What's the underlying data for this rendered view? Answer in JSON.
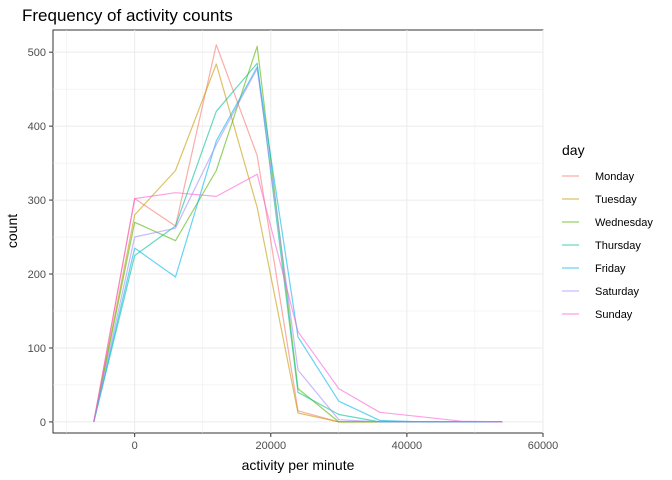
{
  "chart_data": {
    "type": "line",
    "title": "Frequency of activity counts",
    "xlabel": "activity per minute",
    "ylabel": "count",
    "xlim": [
      -12000,
      60000
    ],
    "ylim": [
      -15,
      530
    ],
    "xticks": [
      0,
      20000,
      40000,
      60000
    ],
    "yticks": [
      0,
      100,
      200,
      300,
      400,
      500
    ],
    "grid": true,
    "legend_title": "day",
    "legend_position": "right",
    "line_opacity": 0.6,
    "x": [
      -6000,
      0,
      6000,
      12000,
      18000,
      24000,
      30000,
      36000,
      42000,
      48000,
      54000
    ],
    "series": [
      {
        "name": "Monday",
        "color": "#F8766D",
        "values": [
          0,
          302,
          265,
          510,
          360,
          15,
          0,
          0,
          0,
          0,
          0
        ]
      },
      {
        "name": "Tuesday",
        "color": "#C49A00",
        "values": [
          0,
          280,
          340,
          484,
          290,
          12,
          0,
          0,
          0,
          0,
          0
        ]
      },
      {
        "name": "Wednesday",
        "color": "#53B400",
        "values": [
          0,
          270,
          245,
          340,
          508,
          45,
          0,
          0,
          0,
          0,
          0
        ]
      },
      {
        "name": "Thursday",
        "color": "#00C094",
        "values": [
          0,
          225,
          265,
          420,
          485,
          40,
          10,
          0,
          0,
          0,
          0
        ]
      },
      {
        "name": "Friday",
        "color": "#00B6EB",
        "values": [
          0,
          235,
          196,
          380,
          480,
          115,
          28,
          2,
          0,
          0,
          0
        ]
      },
      {
        "name": "Saturday",
        "color": "#A58AFF",
        "values": [
          0,
          250,
          262,
          375,
          478,
          70,
          3,
          0,
          0,
          0,
          0
        ]
      },
      {
        "name": "Sunday",
        "color": "#FB61D7",
        "values": [
          0,
          302,
          310,
          305,
          335,
          122,
          45,
          13,
          7,
          1,
          0
        ]
      }
    ]
  }
}
